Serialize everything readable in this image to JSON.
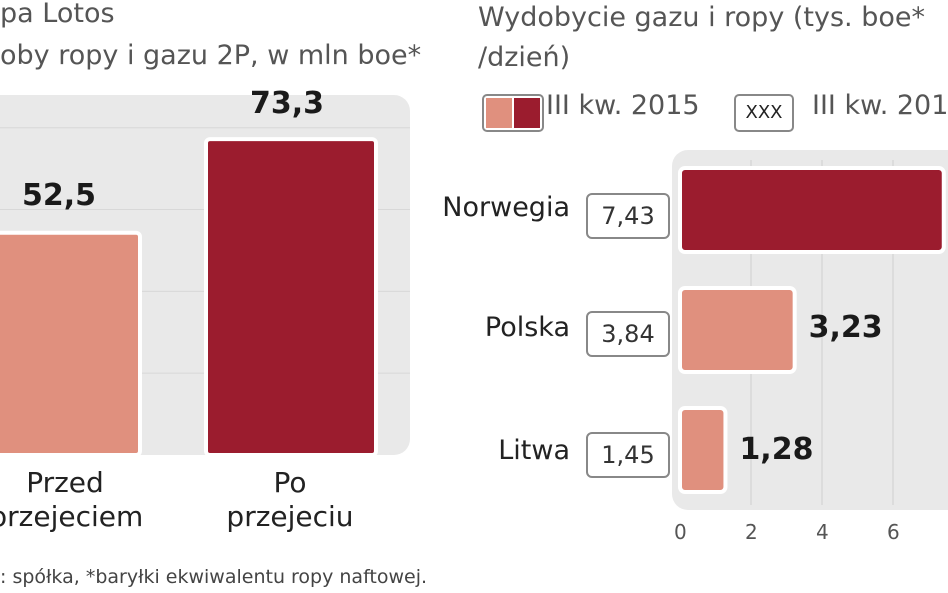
{
  "left_panel": {
    "title_line1": "pa Lotos",
    "title_line2": "oby ropy i gazu 2P, w mln boe*"
  },
  "right_panel": {
    "title_line1": "Wydobycie gazu i ropy (tys. boe*",
    "title_line2": "/dzień)"
  },
  "legend": {
    "series1_label": "III kw. 2015",
    "series2_box_text": "XXX",
    "series2_label": "III kw. 201"
  },
  "footnote": ": spółka, *baryłki ekwiwalentu ropy naftowej.",
  "colors": {
    "light": "#e0907e",
    "dark": "#9b1c2e",
    "panel": "#e9e9e9"
  },
  "chart_data": [
    {
      "type": "bar",
      "title": "oby ropy i gazu 2P, w mln boe*",
      "categories": [
        [
          "Przed",
          "orzejeciem"
        ],
        [
          "Po",
          "przejeciu"
        ]
      ],
      "values": [
        52.5,
        73.3
      ],
      "value_labels": [
        "52,5",
        "73,3"
      ],
      "ylim": [
        0,
        80
      ]
    },
    {
      "type": "bar",
      "orientation": "horizontal",
      "title": "Wydobycie gazu i ropy (tys. boe* /dzień)",
      "categories": [
        "Norwegia",
        "Polska",
        "Litwa"
      ],
      "series": [
        {
          "name": "III kw. 2015",
          "values": [
            null,
            3.23,
            1.28
          ],
          "value_labels": [
            "",
            "3,23",
            "1,28"
          ]
        },
        {
          "name": "III kw. 201",
          "values": [
            7.43,
            3.84,
            1.45
          ],
          "value_labels": [
            "7,43",
            "3,84",
            "1,45"
          ]
        }
      ],
      "xticks": [
        "0",
        "2",
        "4",
        "6"
      ],
      "xlim": [
        0,
        7.4
      ]
    }
  ]
}
